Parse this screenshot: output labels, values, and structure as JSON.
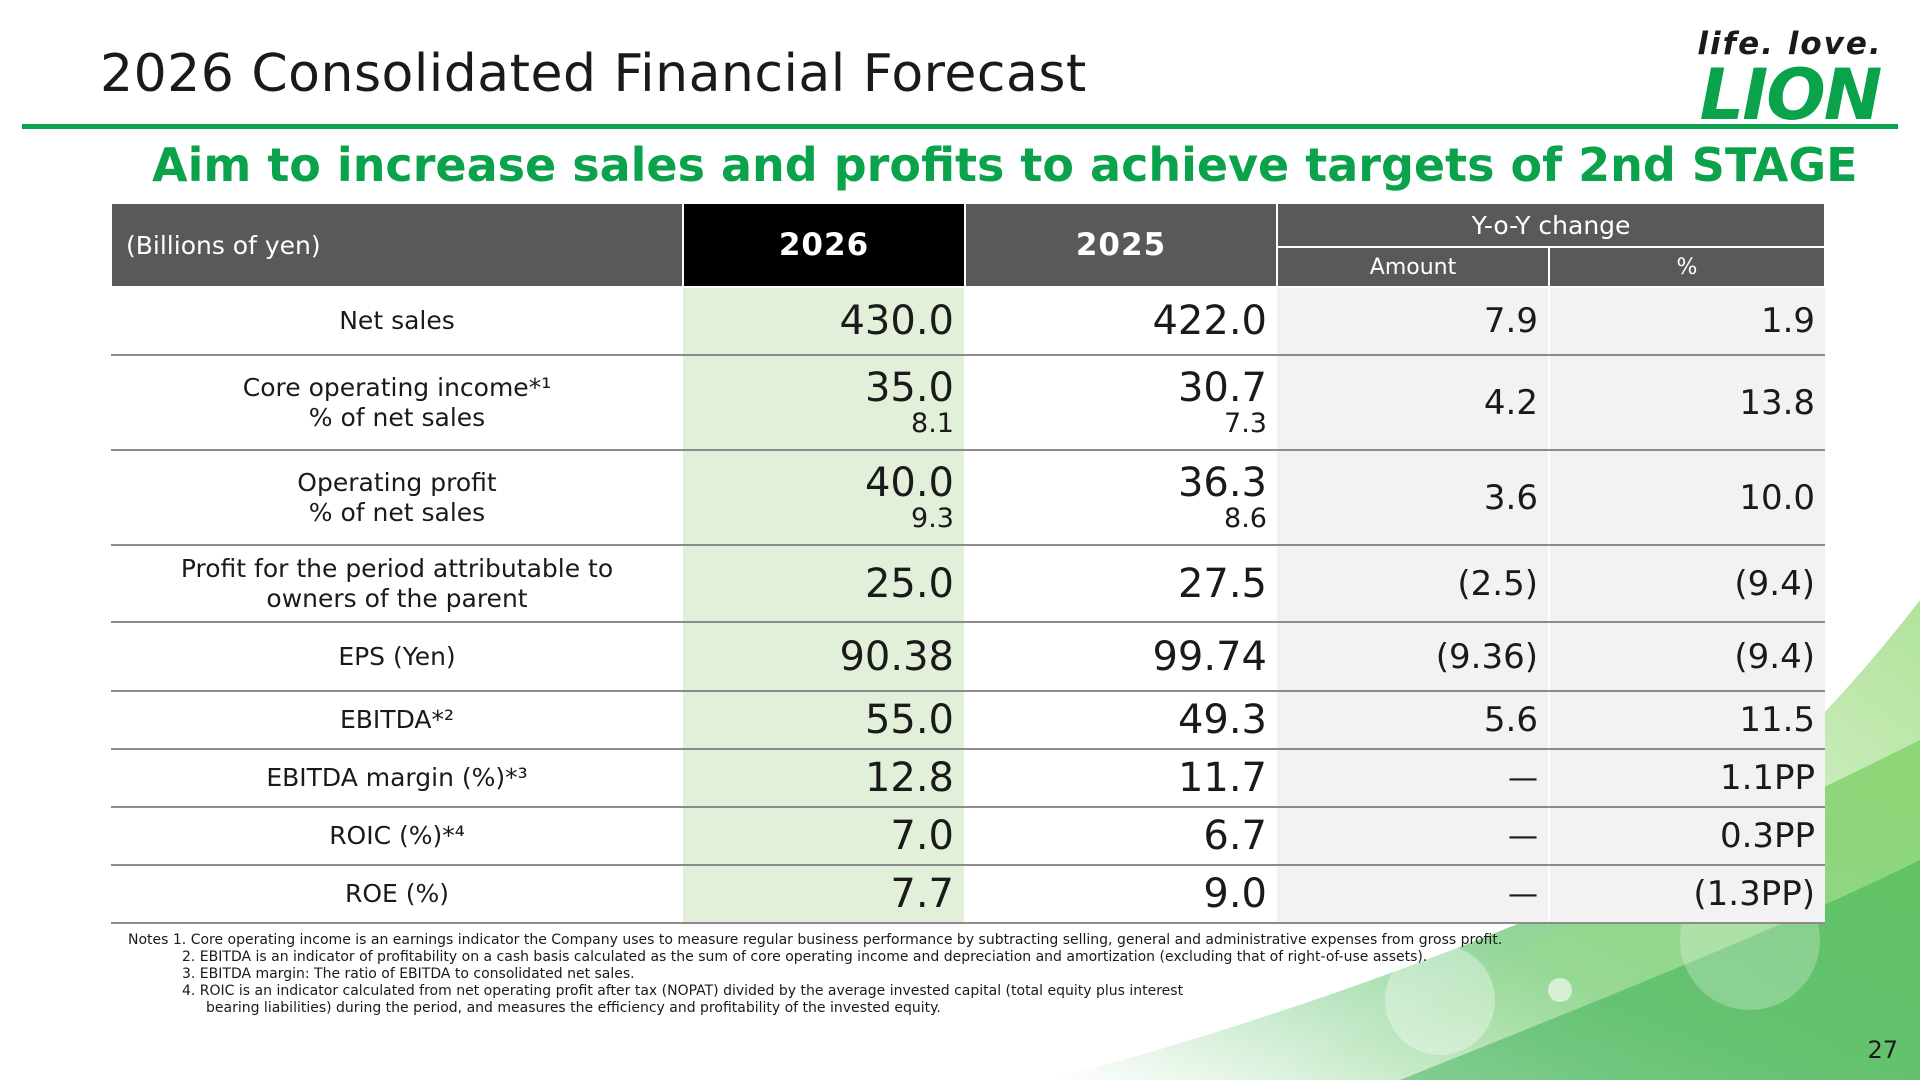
{
  "header": {
    "title": "2026 Consolidated Financial Forecast",
    "logo_tagline": "life. love.",
    "logo_word": "LION"
  },
  "subtitle": "Aim to increase sales and profits to achieve targets of 2nd STAGE",
  "table": {
    "unit_label": "(Billions of yen)",
    "col_2026": "2026",
    "col_2025": "2025",
    "col_yoy": "Y-o-Y change",
    "col_amount": "Amount",
    "col_percent": "%",
    "rows": [
      {
        "label1": "Net sales",
        "label2": "",
        "v2026": "430.0",
        "v2026_sub": "",
        "v2025": "422.0",
        "v2025_sub": "",
        "amount": "7.9",
        "percent": "1.9"
      },
      {
        "label1": "Core operating income*¹",
        "label2": "% of net sales",
        "v2026": "35.0",
        "v2026_sub": "8.1",
        "v2025": "30.7",
        "v2025_sub": "7.3",
        "amount": "4.2",
        "percent": "13.8"
      },
      {
        "label1": "Operating profit",
        "label2": "% of net sales",
        "v2026": "40.0",
        "v2026_sub": "9.3",
        "v2025": "36.3",
        "v2025_sub": "8.6",
        "amount": "3.6",
        "percent": "10.0"
      },
      {
        "label1": "Profit for the period attributable to",
        "label2": "owners of the parent",
        "v2026": "25.0",
        "v2026_sub": "",
        "v2025": "27.5",
        "v2025_sub": "",
        "amount": "(2.5)",
        "percent": "(9.4)"
      },
      {
        "label1": "EPS (Yen)",
        "label2": "",
        "v2026": "90.38",
        "v2026_sub": "",
        "v2025": "99.74",
        "v2025_sub": "",
        "amount": "(9.36)",
        "percent": "(9.4)"
      },
      {
        "label1": "EBITDA*²",
        "label2": "",
        "v2026": "55.0",
        "v2026_sub": "",
        "v2025": "49.3",
        "v2025_sub": "",
        "amount": "5.6",
        "percent": "11.5"
      },
      {
        "label1": "EBITDA margin (%)*³",
        "label2": "",
        "v2026": "12.8",
        "v2026_sub": "",
        "v2025": "11.7",
        "v2025_sub": "",
        "amount": "—",
        "percent": "1.1PP"
      },
      {
        "label1": "ROIC (%)*⁴",
        "label2": "",
        "v2026": "7.0",
        "v2026_sub": "",
        "v2025": "6.7",
        "v2025_sub": "",
        "amount": "—",
        "percent": "0.3PP"
      },
      {
        "label1": "ROE (%)",
        "label2": "",
        "v2026": "7.7",
        "v2026_sub": "",
        "v2025": "9.0",
        "v2025_sub": "",
        "amount": "—",
        "percent": "(1.3PP)"
      }
    ]
  },
  "notes": [
    "Notes 1. Core operating income is an earnings indicator the Company uses to measure regular business performance by subtracting selling, general and administrative expenses from gross profit.",
    "2. EBITDA is an indicator of profitability on a cash basis calculated as the sum of core operating income and depreciation and amortization (excluding that of right-of-use assets).",
    "3. EBITDA margin: The ratio of EBITDA to consolidated net sales.",
    "4. ROIC is an indicator calculated from net operating profit after tax (NOPAT) divided by the average invested capital (total equity plus interest",
    "bearing liabilities) during the period, and measures the efficiency and profitability of the invested equity."
  ],
  "page_number": "27",
  "colors": {
    "brand_green": "#0aa24a",
    "header_gray": "#595959",
    "highlight_column": "#e3f0d9",
    "yoy_column": "#f2f2f2"
  }
}
